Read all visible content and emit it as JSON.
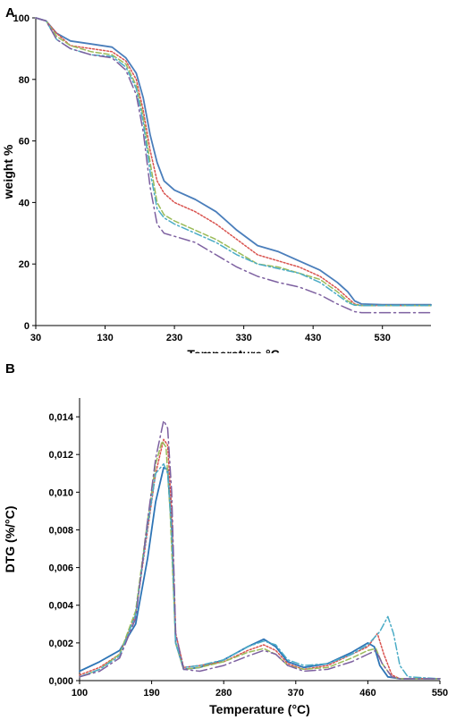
{
  "chart_data": [
    {
      "panel_label": "A",
      "type": "line",
      "xlabel": "Temperature °C",
      "ylabel": "weight %",
      "xlim": [
        30,
        600
      ],
      "ylim": [
        0,
        100
      ],
      "x_ticks": [
        30,
        130,
        230,
        330,
        430,
        530
      ],
      "y_ticks": [
        0,
        20,
        40,
        60,
        80,
        100
      ],
      "grid": false,
      "series": [
        {
          "color": "#4a7ebb",
          "style": "solid",
          "points": [
            [
              30,
              100
            ],
            [
              45,
              99
            ],
            [
              60,
              95
            ],
            [
              80,
              92.5
            ],
            [
              110,
              91.5
            ],
            [
              140,
              90.5
            ],
            [
              160,
              87
            ],
            [
              175,
              82
            ],
            [
              185,
              74
            ],
            [
              195,
              62
            ],
            [
              205,
              53
            ],
            [
              215,
              47
            ],
            [
              230,
              44
            ],
            [
              260,
              41
            ],
            [
              290,
              37
            ],
            [
              320,
              31
            ],
            [
              350,
              26
            ],
            [
              380,
              24
            ],
            [
              410,
              21
            ],
            [
              440,
              18
            ],
            [
              465,
              14
            ],
            [
              480,
              11
            ],
            [
              490,
              8
            ],
            [
              500,
              7
            ],
            [
              530,
              6.8
            ],
            [
              600,
              6.8
            ]
          ]
        },
        {
          "color": "#d9534f",
          "style": "dotted",
          "points": [
            [
              30,
              100
            ],
            [
              45,
              99
            ],
            [
              60,
              95
            ],
            [
              80,
              91
            ],
            [
              110,
              90
            ],
            [
              140,
              89
            ],
            [
              160,
              86
            ],
            [
              175,
              80
            ],
            [
              185,
              70
            ],
            [
              195,
              57
            ],
            [
              205,
              47
            ],
            [
              215,
              43
            ],
            [
              230,
              40
            ],
            [
              260,
              37
            ],
            [
              290,
              33
            ],
            [
              320,
              28
            ],
            [
              350,
              23
            ],
            [
              380,
              21
            ],
            [
              410,
              19
            ],
            [
              440,
              16
            ],
            [
              465,
              12
            ],
            [
              480,
              9
            ],
            [
              490,
              7
            ],
            [
              500,
              6.5
            ],
            [
              530,
              6.5
            ],
            [
              600,
              6.5
            ]
          ]
        },
        {
          "color": "#9bbb59",
          "style": "dashed",
          "points": [
            [
              30,
              100
            ],
            [
              45,
              99
            ],
            [
              60,
              94
            ],
            [
              80,
              91
            ],
            [
              110,
              89
            ],
            [
              140,
              88
            ],
            [
              160,
              85
            ],
            [
              175,
              78
            ],
            [
              185,
              68
            ],
            [
              195,
              53
            ],
            [
              205,
              40
            ],
            [
              215,
              36
            ],
            [
              230,
              34
            ],
            [
              260,
              31
            ],
            [
              290,
              28
            ],
            [
              320,
              24
            ],
            [
              350,
              20
            ],
            [
              380,
              19
            ],
            [
              410,
              17
            ],
            [
              440,
              15
            ],
            [
              465,
              11
            ],
            [
              480,
              8
            ],
            [
              490,
              6.8
            ],
            [
              500,
              6.5
            ],
            [
              530,
              6.5
            ],
            [
              600,
              6.5
            ]
          ]
        },
        {
          "color": "#4bacc6",
          "style": "dashdot",
          "points": [
            [
              30,
              100
            ],
            [
              45,
              99
            ],
            [
              60,
              93
            ],
            [
              80,
              90
            ],
            [
              110,
              88
            ],
            [
              140,
              87.5
            ],
            [
              160,
              84
            ],
            [
              175,
              77
            ],
            [
              185,
              66
            ],
            [
              195,
              50
            ],
            [
              205,
              38
            ],
            [
              215,
              35
            ],
            [
              230,
              33
            ],
            [
              260,
              30
            ],
            [
              290,
              27
            ],
            [
              320,
              23
            ],
            [
              350,
              20
            ],
            [
              380,
              18.5
            ],
            [
              410,
              17
            ],
            [
              440,
              14
            ],
            [
              465,
              10
            ],
            [
              480,
              7.5
            ],
            [
              490,
              6.6
            ],
            [
              500,
              6.5
            ],
            [
              530,
              6.5
            ],
            [
              600,
              6.5
            ]
          ]
        },
        {
          "color": "#7d60a0",
          "style": "longdashdot",
          "points": [
            [
              30,
              100
            ],
            [
              45,
              99
            ],
            [
              60,
              93
            ],
            [
              80,
              90
            ],
            [
              110,
              88
            ],
            [
              140,
              87
            ],
            [
              160,
              83
            ],
            [
              175,
              75
            ],
            [
              185,
              63
            ],
            [
              195,
              45
            ],
            [
              205,
              33
            ],
            [
              215,
              30
            ],
            [
              230,
              29
            ],
            [
              260,
              27
            ],
            [
              290,
              23
            ],
            [
              320,
              19
            ],
            [
              350,
              16
            ],
            [
              380,
              14
            ],
            [
              410,
              12.5
            ],
            [
              440,
              10
            ],
            [
              465,
              7
            ],
            [
              480,
              5.5
            ],
            [
              490,
              4.5
            ],
            [
              500,
              4.2
            ],
            [
              530,
              4.2
            ],
            [
              600,
              4.2
            ]
          ]
        }
      ]
    },
    {
      "panel_label": "B",
      "type": "line",
      "xlabel": "Temperature (°C)",
      "ylabel": "DTG (%/°C)",
      "xlim": [
        100,
        550
      ],
      "ylim": [
        0,
        0.015
      ],
      "x_ticks": [
        100,
        190,
        280,
        370,
        460,
        550
      ],
      "y_ticks": [
        0,
        0.002,
        0.004,
        0.006,
        0.008,
        0.01,
        0.012,
        0.014
      ],
      "y_tick_labels": [
        "0,000",
        "0,002",
        "0,004",
        "0,006",
        "0,008",
        "0,010",
        "0,012",
        "0,014"
      ],
      "grid": false,
      "series": [
        {
          "color": "#2e75b6",
          "style": "solid",
          "points": [
            [
              100,
              0.0005
            ],
            [
              125,
              0.001
            ],
            [
              150,
              0.0016
            ],
            [
              170,
              0.003
            ],
            [
              185,
              0.0065
            ],
            [
              195,
              0.0095
            ],
            [
              205,
              0.0113
            ],
            [
              210,
              0.0112
            ],
            [
              215,
              0.008
            ],
            [
              220,
              0.002
            ],
            [
              230,
              0.0006
            ],
            [
              250,
              0.0007
            ],
            [
              280,
              0.0011
            ],
            [
              310,
              0.0018
            ],
            [
              330,
              0.0022
            ],
            [
              345,
              0.0018
            ],
            [
              360,
              0.001
            ],
            [
              380,
              0.0007
            ],
            [
              410,
              0.0009
            ],
            [
              440,
              0.0015
            ],
            [
              460,
              0.002
            ],
            [
              468,
              0.0018
            ],
            [
              475,
              0.0008
            ],
            [
              485,
              0.0002
            ],
            [
              500,
              0.0001
            ],
            [
              550,
              0.0001
            ]
          ]
        },
        {
          "color": "#d9534f",
          "style": "dotted",
          "points": [
            [
              100,
              0.0003
            ],
            [
              125,
              0.0007
            ],
            [
              150,
              0.0014
            ],
            [
              170,
              0.0035
            ],
            [
              185,
              0.008
            ],
            [
              195,
              0.011
            ],
            [
              205,
              0.0128
            ],
            [
              210,
              0.0125
            ],
            [
              215,
              0.009
            ],
            [
              220,
              0.0025
            ],
            [
              230,
              0.0007
            ],
            [
              250,
              0.0008
            ],
            [
              280,
              0.001
            ],
            [
              310,
              0.0016
            ],
            [
              330,
              0.0019
            ],
            [
              345,
              0.0016
            ],
            [
              360,
              0.0009
            ],
            [
              380,
              0.0006
            ],
            [
              410,
              0.0008
            ],
            [
              440,
              0.0014
            ],
            [
              460,
              0.0018
            ],
            [
              472,
              0.0025
            ],
            [
              480,
              0.0014
            ],
            [
              490,
              0.0003
            ],
            [
              500,
              0.0001
            ],
            [
              550,
              0.0001
            ]
          ]
        },
        {
          "color": "#9bbb59",
          "style": "dashed",
          "points": [
            [
              100,
              0.0002
            ],
            [
              125,
              0.0006
            ],
            [
              150,
              0.0014
            ],
            [
              170,
              0.0037
            ],
            [
              185,
              0.0085
            ],
            [
              195,
              0.0115
            ],
            [
              203,
              0.0127
            ],
            [
              208,
              0.0124
            ],
            [
              213,
              0.009
            ],
            [
              220,
              0.002
            ],
            [
              230,
              0.0006
            ],
            [
              250,
              0.0007
            ],
            [
              280,
              0.001
            ],
            [
              310,
              0.0015
            ],
            [
              330,
              0.0017
            ],
            [
              345,
              0.0014
            ],
            [
              360,
              0.0008
            ],
            [
              380,
              0.0006
            ],
            [
              410,
              0.0007
            ],
            [
              440,
              0.0012
            ],
            [
              460,
              0.0016
            ],
            [
              470,
              0.0017
            ],
            [
              478,
              0.0009
            ],
            [
              490,
              0.0002
            ],
            [
              500,
              0.0001
            ],
            [
              550,
              0.0001
            ]
          ]
        },
        {
          "color": "#4bacc6",
          "style": "dashdot",
          "points": [
            [
              100,
              0.0002
            ],
            [
              125,
              0.0006
            ],
            [
              150,
              0.0013
            ],
            [
              170,
              0.0035
            ],
            [
              185,
              0.0082
            ],
            [
              195,
              0.011
            ],
            [
              205,
              0.0115
            ],
            [
              210,
              0.011
            ],
            [
              215,
              0.008
            ],
            [
              220,
              0.002
            ],
            [
              230,
              0.0007
            ],
            [
              250,
              0.0008
            ],
            [
              280,
              0.0011
            ],
            [
              310,
              0.0018
            ],
            [
              330,
              0.0021
            ],
            [
              345,
              0.0019
            ],
            [
              360,
              0.0011
            ],
            [
              380,
              0.0008
            ],
            [
              410,
              0.0009
            ],
            [
              440,
              0.0014
            ],
            [
              460,
              0.0019
            ],
            [
              475,
              0.0026
            ],
            [
              485,
              0.0034
            ],
            [
              492,
              0.0025
            ],
            [
              500,
              0.0008
            ],
            [
              510,
              0.0002
            ],
            [
              550,
              0.0001
            ]
          ]
        },
        {
          "color": "#7d60a0",
          "style": "longdashdot",
          "points": [
            [
              100,
              0.0002
            ],
            [
              125,
              0.0005
            ],
            [
              150,
              0.0012
            ],
            [
              170,
              0.0033
            ],
            [
              185,
              0.0085
            ],
            [
              195,
              0.0118
            ],
            [
              205,
              0.0138
            ],
            [
              210,
              0.0134
            ],
            [
              215,
              0.01
            ],
            [
              220,
              0.0025
            ],
            [
              230,
              0.0006
            ],
            [
              250,
              0.0005
            ],
            [
              280,
              0.0008
            ],
            [
              310,
              0.0013
            ],
            [
              330,
              0.0016
            ],
            [
              345,
              0.0014
            ],
            [
              360,
              0.0008
            ],
            [
              380,
              0.0005
            ],
            [
              410,
              0.0006
            ],
            [
              440,
              0.001
            ],
            [
              460,
              0.0014
            ],
            [
              470,
              0.0016
            ],
            [
              478,
              0.0009
            ],
            [
              490,
              0.0002
            ],
            [
              500,
              0.0001
            ],
            [
              550,
              0.0001
            ]
          ]
        }
      ]
    }
  ]
}
